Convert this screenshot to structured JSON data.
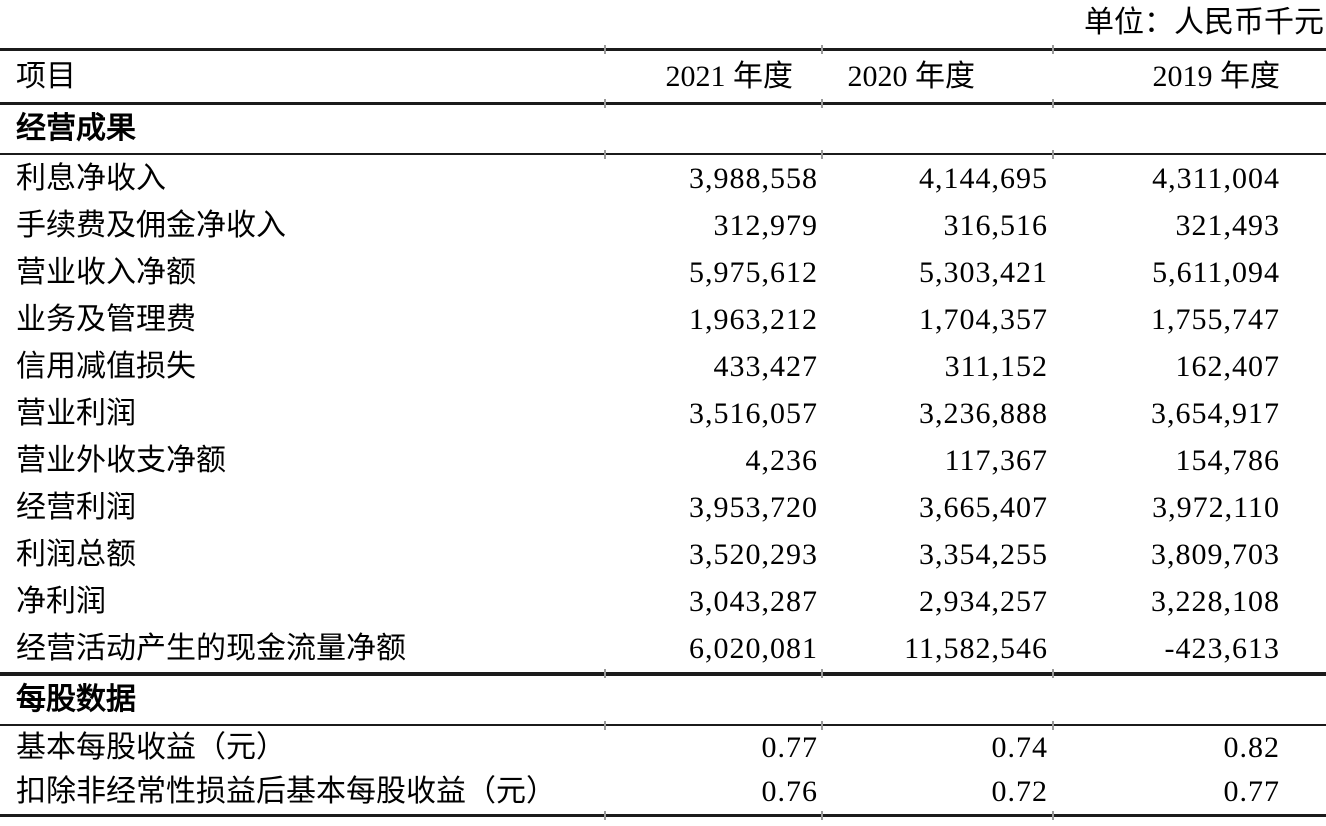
{
  "unit_label": "单位：人民币千元",
  "table": {
    "columns": [
      "项目",
      "2021 年度",
      "2020 年度",
      "2019 年度"
    ],
    "sections": [
      {
        "title": "经营成果",
        "rows": [
          {
            "label": "利息净收入",
            "values": [
              "3,988,558",
              "4,144,695",
              "4,311,004"
            ]
          },
          {
            "label": "手续费及佣金净收入",
            "values": [
              "312,979",
              "316,516",
              "321,493"
            ]
          },
          {
            "label": "营业收入净额",
            "values": [
              "5,975,612",
              "5,303,421",
              "5,611,094"
            ]
          },
          {
            "label": "业务及管理费",
            "values": [
              "1,963,212",
              "1,704,357",
              "1,755,747"
            ]
          },
          {
            "label": "信用减值损失",
            "values": [
              "433,427",
              "311,152",
              "162,407"
            ]
          },
          {
            "label": "营业利润",
            "values": [
              "3,516,057",
              "3,236,888",
              "3,654,917"
            ]
          },
          {
            "label": "营业外收支净额",
            "values": [
              "4,236",
              "117,367",
              "154,786"
            ]
          },
          {
            "label": "经营利润",
            "values": [
              "3,953,720",
              "3,665,407",
              "3,972,110"
            ]
          },
          {
            "label": "利润总额",
            "values": [
              "3,520,293",
              "3,354,255",
              "3,809,703"
            ]
          },
          {
            "label": "净利润",
            "values": [
              "3,043,287",
              "2,934,257",
              "3,228,108"
            ]
          },
          {
            "label": "经营活动产生的现金流量净额",
            "values": [
              "6,020,081",
              "11,582,546",
              "-423,613"
            ]
          }
        ]
      },
      {
        "title": "每股数据",
        "rows": [
          {
            "label": "基本每股收益（元）",
            "values": [
              "0.77",
              "0.74",
              "0.82"
            ]
          },
          {
            "label": "扣除非经常性损益后基本每股收益（元）",
            "values": [
              "0.76",
              "0.72",
              "0.77"
            ]
          }
        ]
      }
    ]
  }
}
